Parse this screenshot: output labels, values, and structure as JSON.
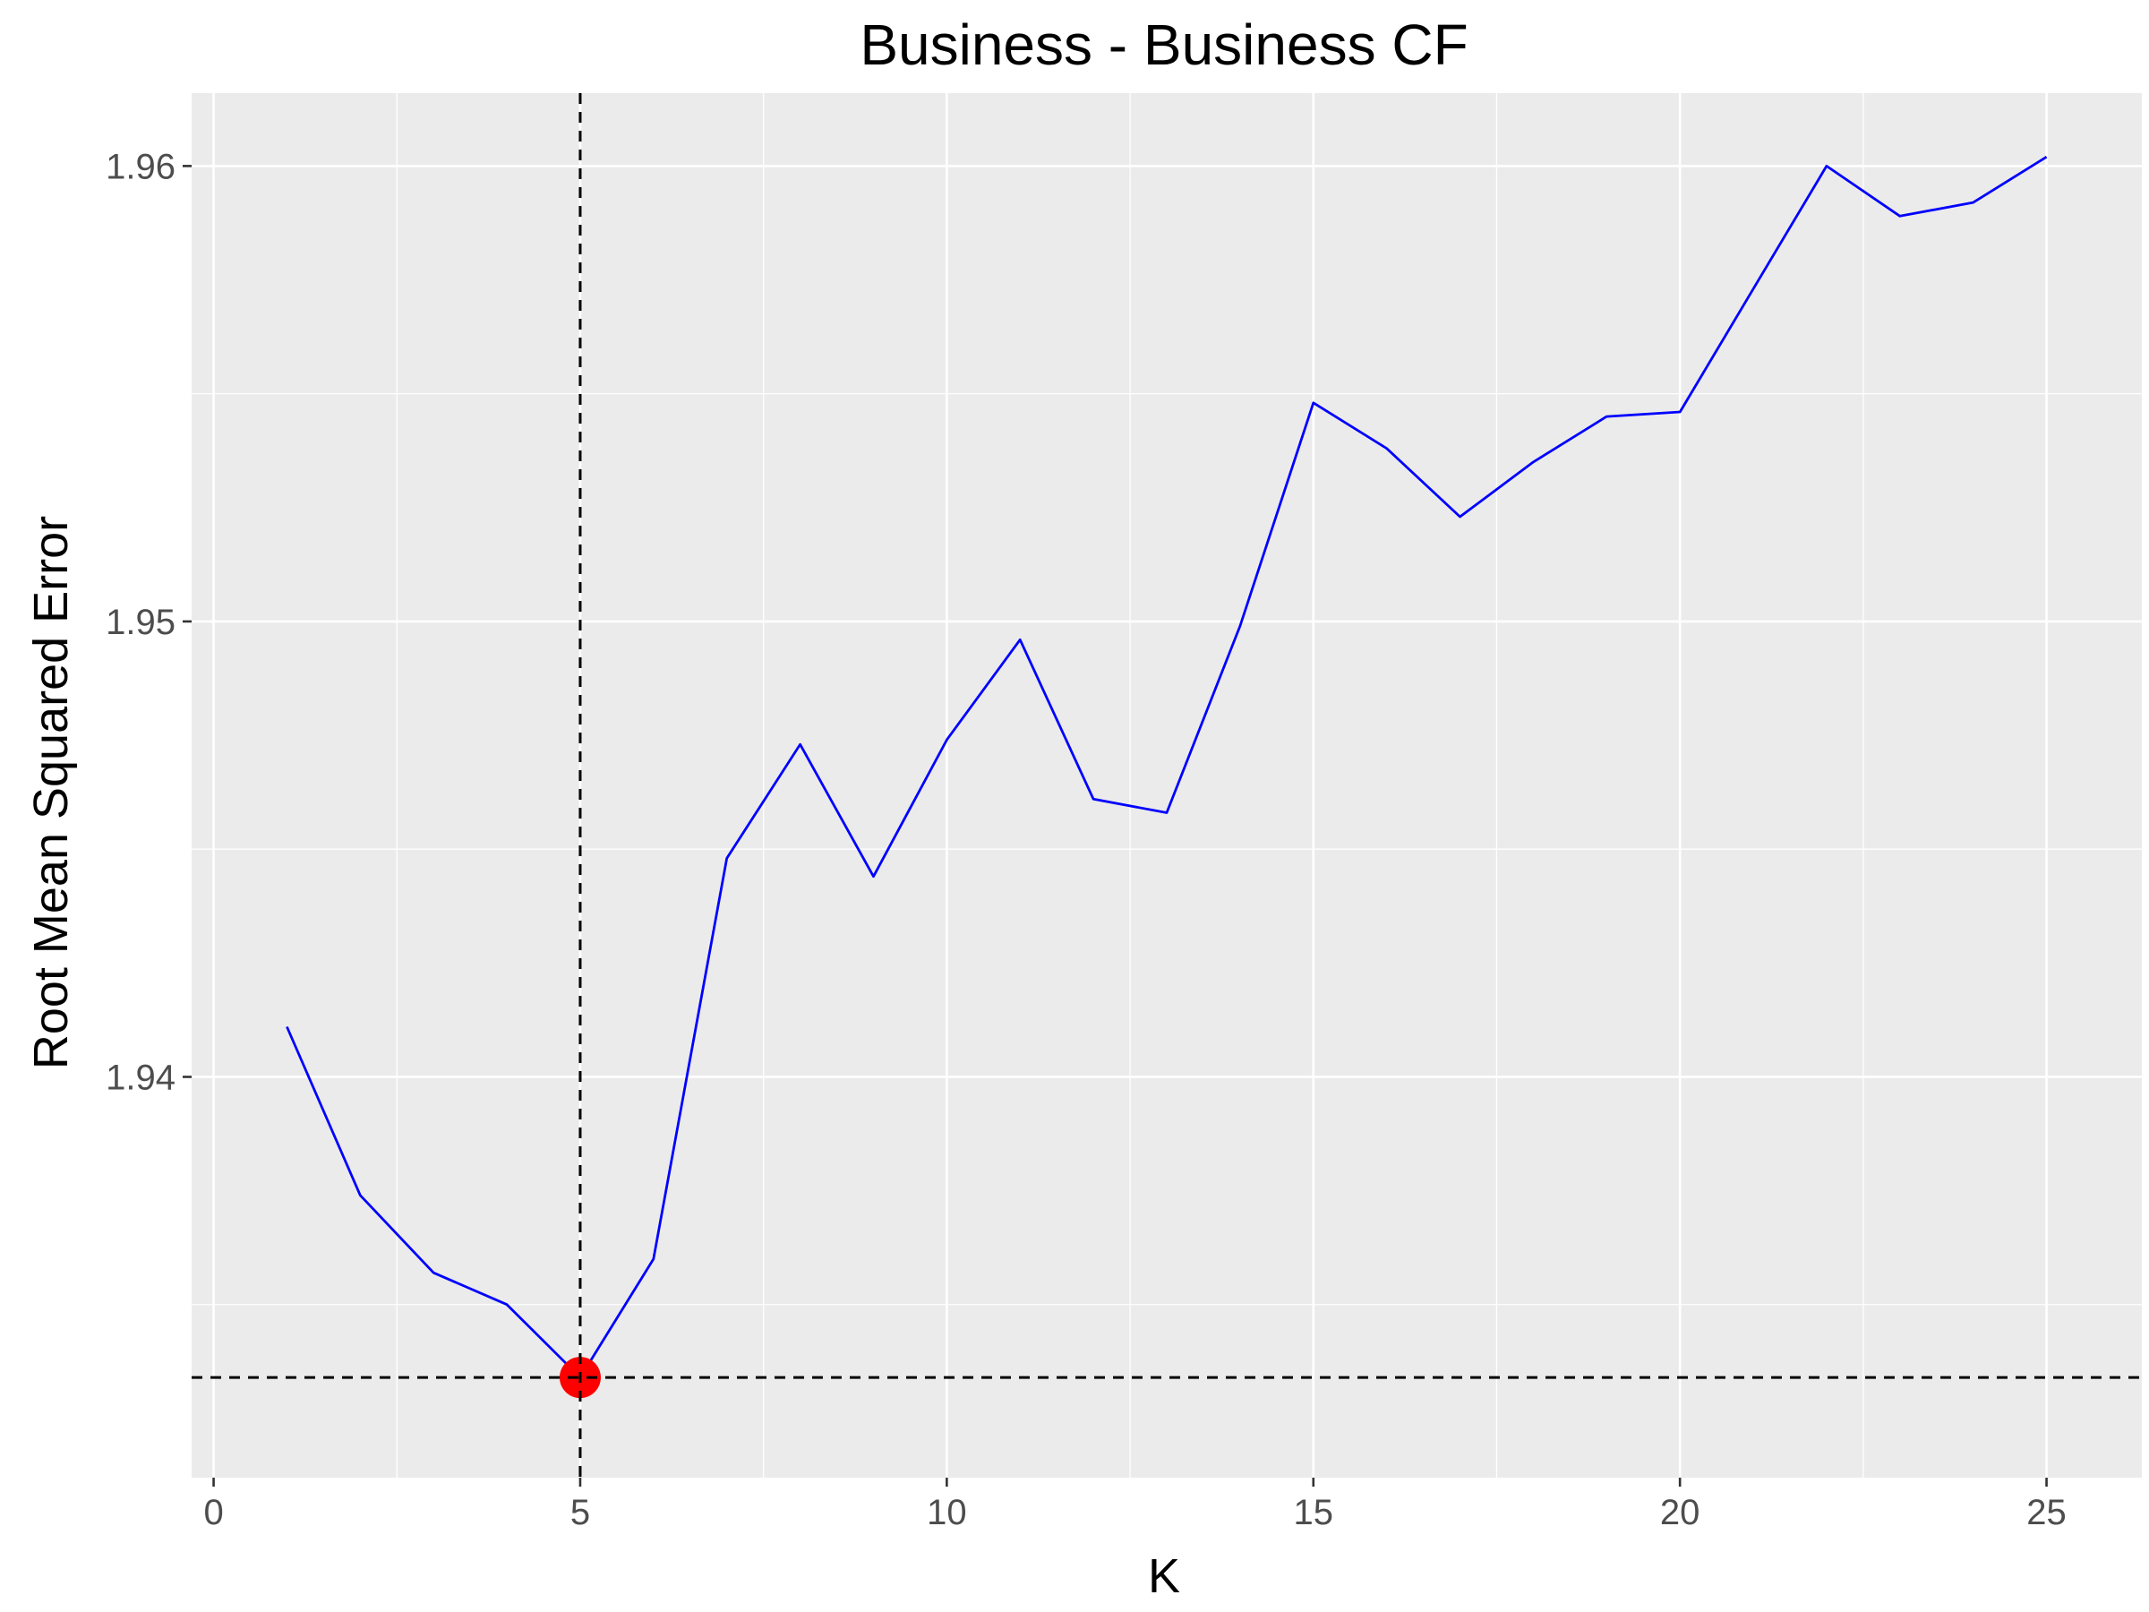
{
  "chart_data": {
    "type": "line",
    "title": "Business - Business CF",
    "xlabel": "K",
    "ylabel": "Root Mean Squared Error",
    "xlim": [
      -0.3,
      26.3
    ],
    "ylim": [
      1.9312,
      1.9616
    ],
    "x_ticks": [
      0,
      5,
      10,
      15,
      20,
      25
    ],
    "x_tick_labels": [
      "0",
      "5",
      "10",
      "15",
      "20",
      "25"
    ],
    "y_ticks": [
      1.94,
      1.95,
      1.96
    ],
    "y_tick_labels": [
      "1.94",
      "1.95",
      "1.96"
    ],
    "grid": true,
    "series": [
      {
        "color": "#0000ff",
        "x": [
          1,
          2,
          3,
          4,
          5,
          6,
          7,
          8,
          9,
          10,
          11,
          12,
          13,
          14,
          15,
          16,
          17,
          18,
          19,
          20,
          21,
          22,
          23,
          24,
          25
        ],
        "y": [
          1.9411,
          1.9374,
          1.9357,
          1.935,
          1.9334,
          1.936,
          1.9448,
          1.9473,
          1.9444,
          1.9474,
          1.9496,
          1.9461,
          1.9458,
          1.9499,
          1.9548,
          1.9538,
          1.9523,
          1.9535,
          1.9545,
          1.9546,
          1.9573,
          1.96,
          1.9589,
          1.9592,
          1.9602
        ]
      }
    ],
    "highlight_point": {
      "x": 5,
      "y": 1.9334,
      "color": "#ff0000"
    },
    "reference_lines": {
      "vertical_x": 5,
      "horizontal_y": 1.9334,
      "style": "dashed",
      "color": "#000000"
    },
    "panel_background": "#ebebeb",
    "grid_color": "#ffffff"
  }
}
